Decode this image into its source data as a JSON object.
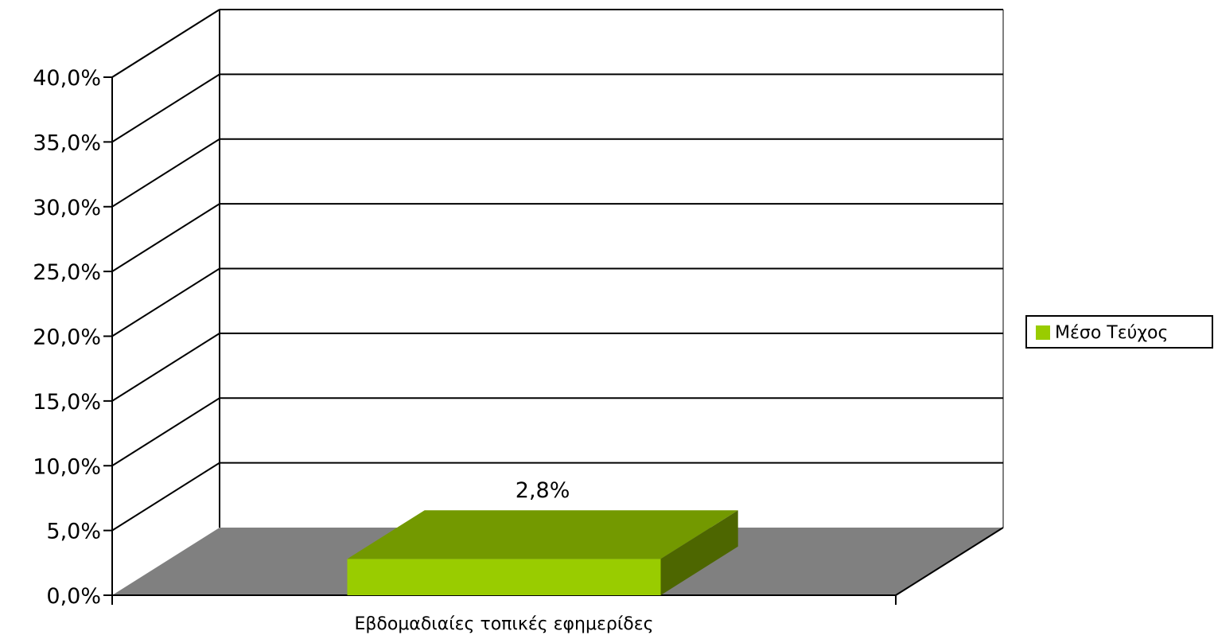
{
  "chart_data": {
    "type": "bar",
    "style": "3d-column",
    "categories": [
      "Εβδομαδιαίες τοπικές εφημερίδες"
    ],
    "series": [
      {
        "name": "Μέσο Τεύχος",
        "values": [
          0.028
        ],
        "color": "#99CC00",
        "data_labels": [
          "2,8%"
        ]
      }
    ],
    "ylim": [
      0,
      0.4
    ],
    "y_ticks": [
      {
        "value": 0.0,
        "label": "0,0%"
      },
      {
        "value": 0.05,
        "label": "5,0%"
      },
      {
        "value": 0.1,
        "label": "10,0%"
      },
      {
        "value": 0.15,
        "label": "15,0%"
      },
      {
        "value": 0.2,
        "label": "20,0%"
      },
      {
        "value": 0.25,
        "label": "25,0%"
      },
      {
        "value": 0.3,
        "label": "30,0%"
      },
      {
        "value": 0.35,
        "label": "35,0%"
      },
      {
        "value": 0.4,
        "label": "40,0%"
      }
    ],
    "grid": true,
    "legend_position": "right",
    "colors": {
      "floor": "#808080",
      "bar_front": "#99CC00",
      "bar_top": "#739900",
      "bar_side": "#4D6600",
      "wall_border": "#808080",
      "gridline": "#000000"
    }
  }
}
